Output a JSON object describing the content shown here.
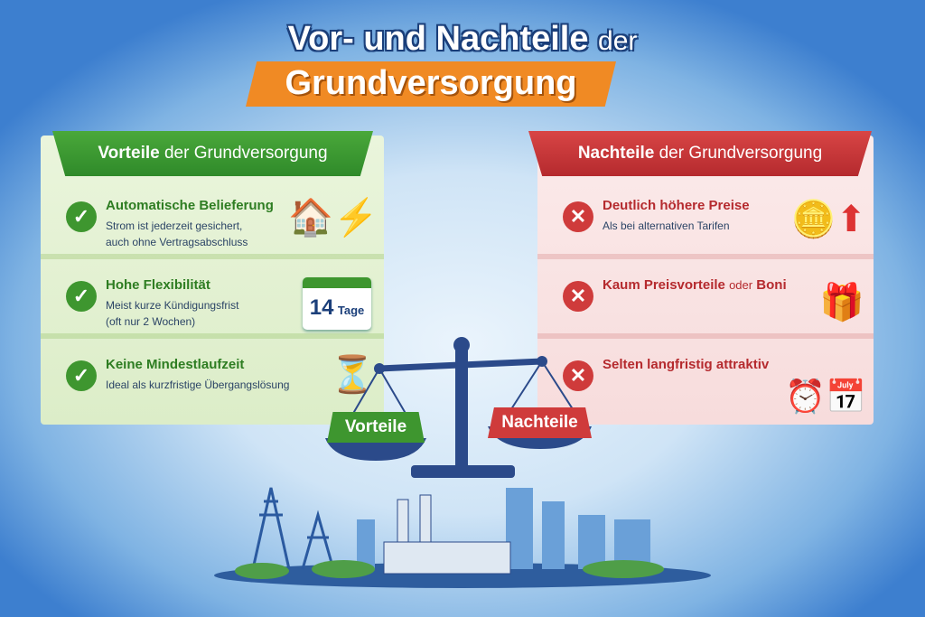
{
  "title": {
    "line1": "Vor- und Nachteile",
    "line1_suffix": "der",
    "line2": "Grundversorgung"
  },
  "advantages": {
    "header_bold": "Vorteile",
    "header_rest": "der Grundversorgung",
    "items": [
      {
        "title": "Automatische Belieferung",
        "desc1": "Strom ist jederzeit gesichert,",
        "desc2": "auch ohne Vertragsabschluss",
        "icon": "house-plug-lightning-icon"
      },
      {
        "title": "Hohe Flexibilität",
        "desc1": "Meist kurze Kündigungsfrist",
        "desc2": "(oft nur 2 Wochen)",
        "icon": "calendar-icon",
        "calendar_num": "14",
        "calendar_unit": "Tage"
      },
      {
        "title": "Keine Mindestlaufzeit",
        "desc1": "Ideal als kurzfristige Übergangslösung",
        "desc2": "",
        "icon": "hourglass-icon"
      }
    ]
  },
  "disadvantages": {
    "header_bold": "Nachteile",
    "header_rest": "der Grundversorgung",
    "items": [
      {
        "title": "Deutlich höhere Preise",
        "desc1": "Als bei alternativen Tarifen",
        "icon": "coins-arrows-up-icon"
      },
      {
        "title": "Kaum Preisvorteile",
        "title_mid": "oder",
        "title_end": "Boni",
        "icon": "gift-question-icon"
      },
      {
        "title": "Selten langfristig attraktiv",
        "icon": "clock-calendar-icon"
      }
    ]
  },
  "scale": {
    "left_label": "Vorteile",
    "right_label": "Nachteile"
  },
  "colors": {
    "green": "#3e962f",
    "red": "#cf3b3b",
    "orange": "#f08a24",
    "navy": "#1b3f7a"
  }
}
